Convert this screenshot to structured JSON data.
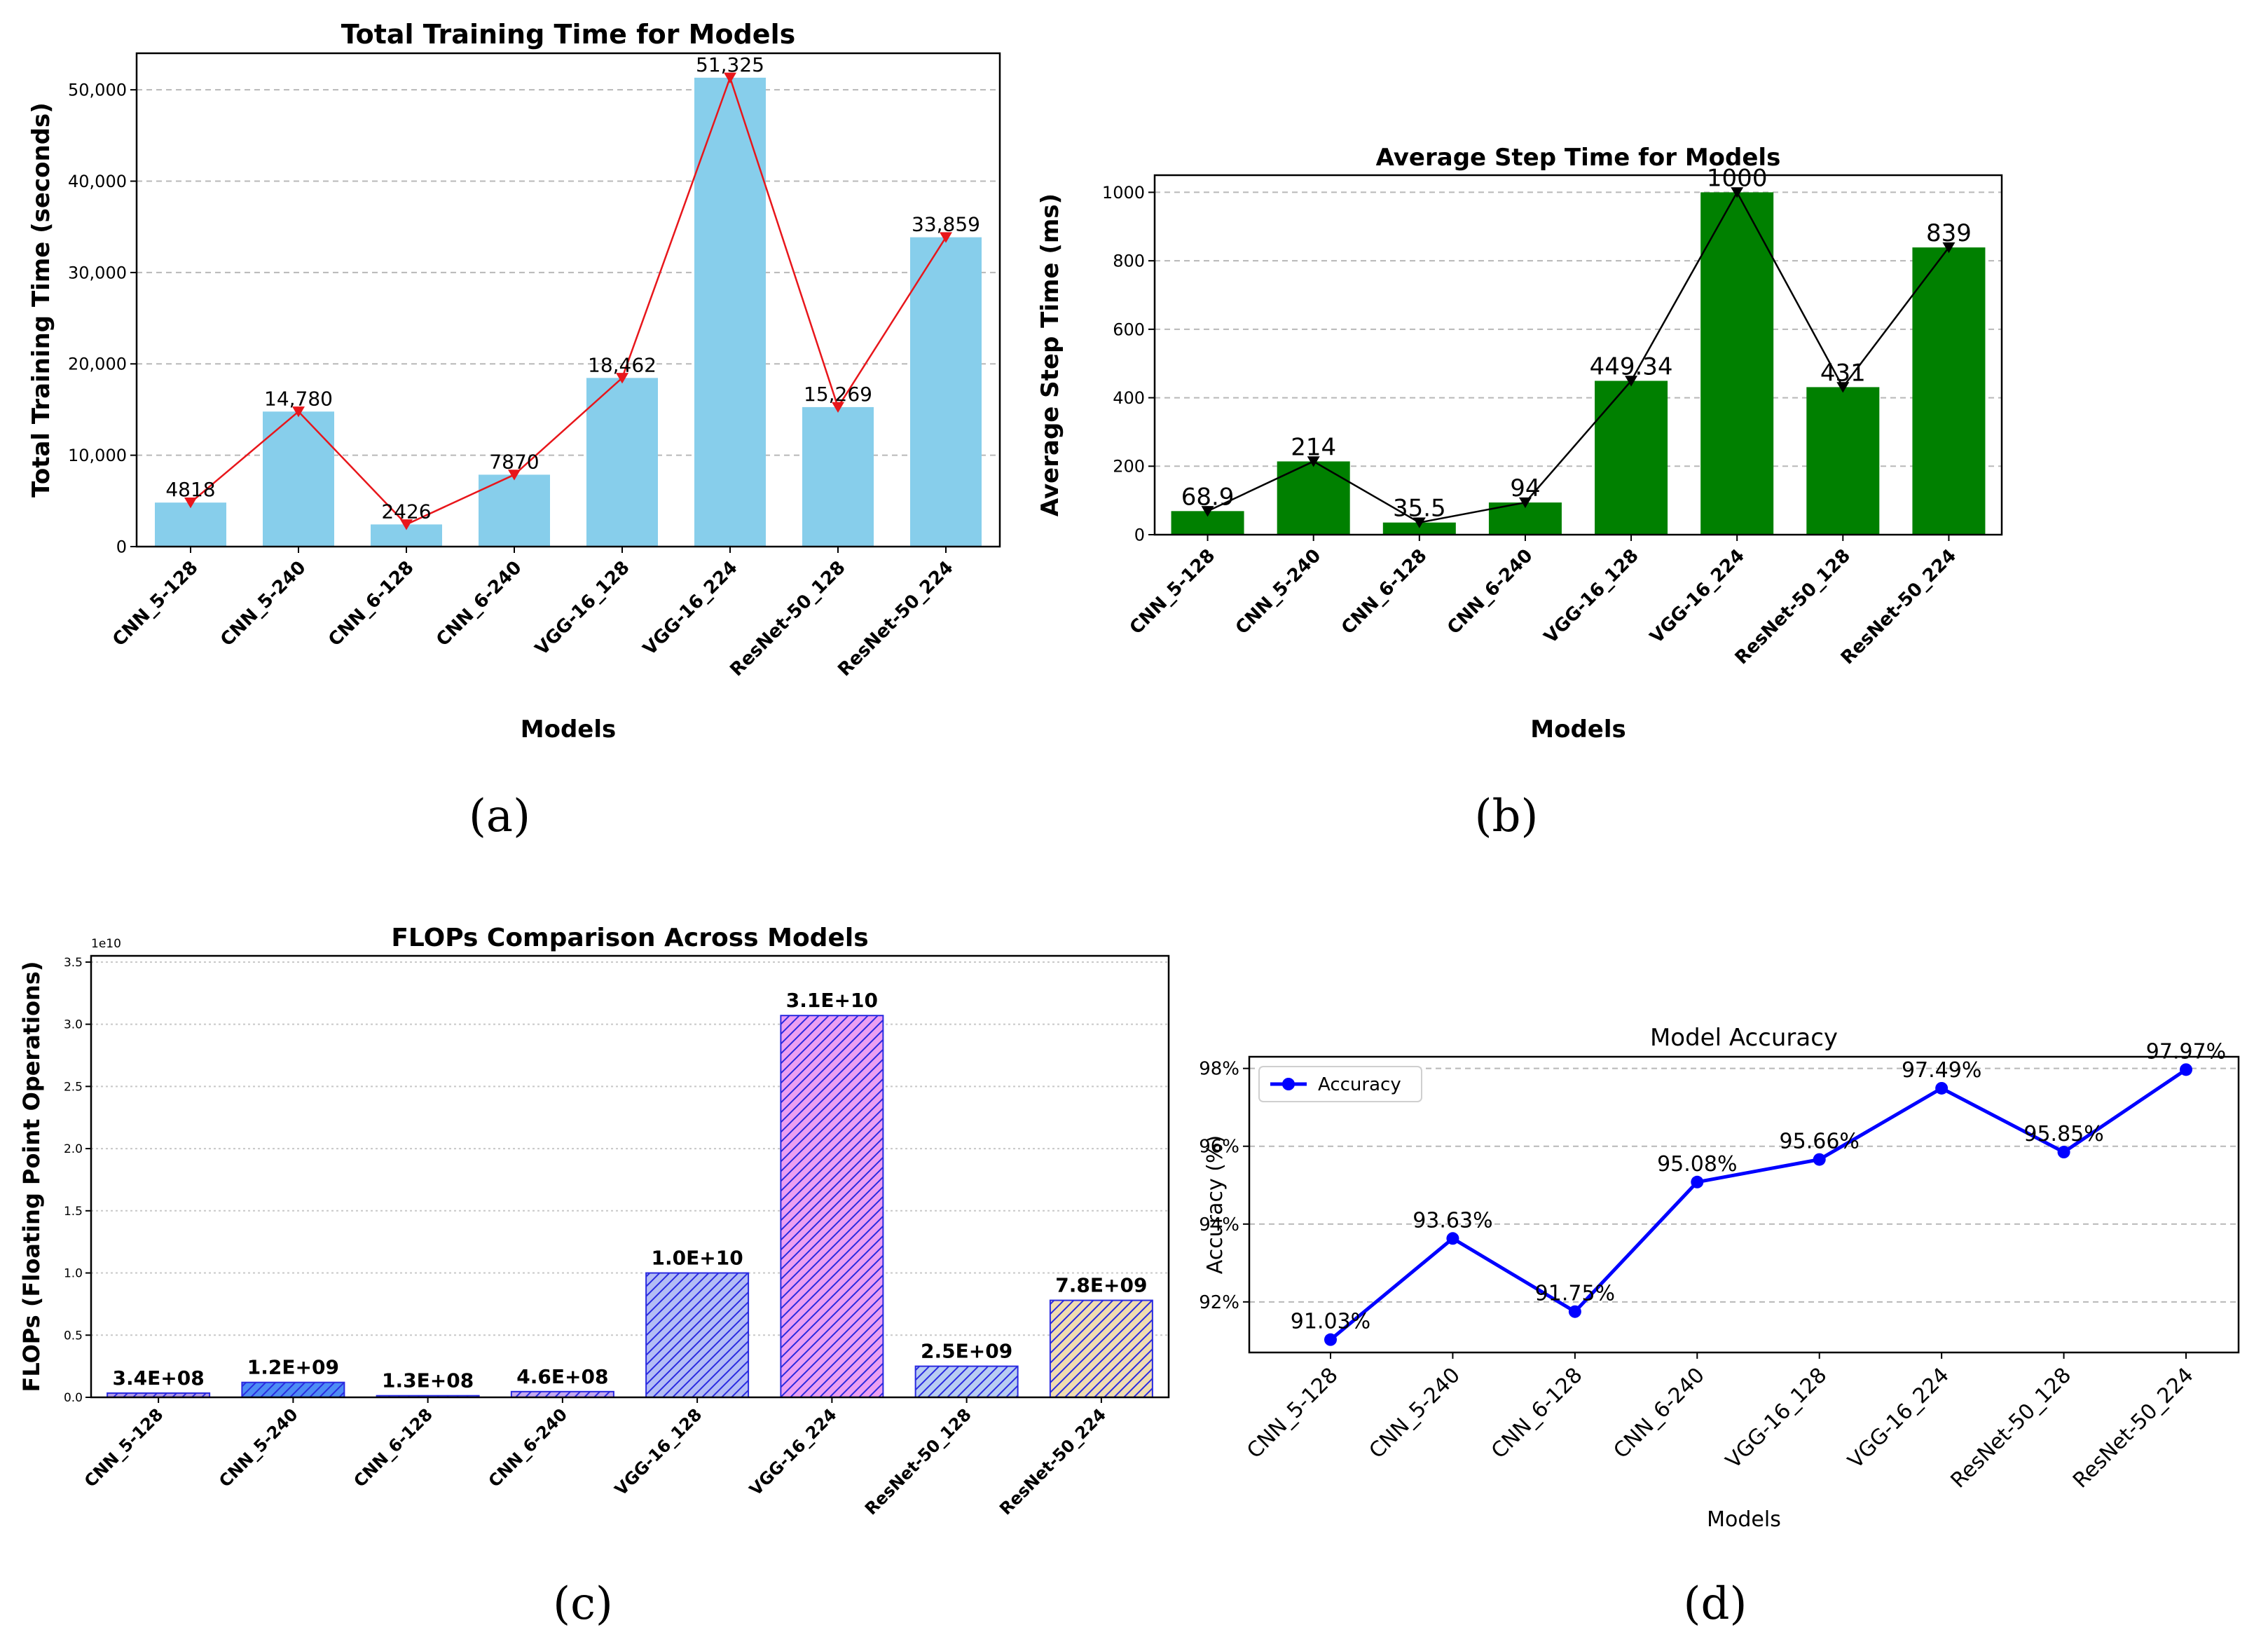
{
  "models": [
    "CNN_5-128",
    "CNN_5-240",
    "CNN_6-128",
    "CNN_6-240",
    "VGG-16_128",
    "VGG-16_224",
    "ResNet-50_128",
    "ResNet-50_224"
  ],
  "chart_data": [
    {
      "id": "a",
      "type": "bar",
      "caption": "(a)",
      "title": "Total Training Time for Models",
      "xlabel": "Models",
      "ylabel": "Total Training Time (seconds)",
      "categories": [
        "CNN_5-128",
        "CNN_5-240",
        "CNN_6-128",
        "CNN_6-240",
        "VGG-16_128",
        "VGG-16_224",
        "ResNet-50_128",
        "ResNet-50_224"
      ],
      "values": [
        4818,
        14780,
        2426,
        7870,
        18462,
        51325,
        15269,
        33859
      ],
      "value_labels": [
        "4818",
        "14,780",
        "2426",
        "7870",
        "18,462",
        "51,325",
        "15,269",
        "33,859"
      ],
      "ylim": [
        0,
        54000
      ],
      "yticks": [
        0,
        10000,
        20000,
        30000,
        40000,
        50000
      ],
      "ytick_labels": [
        "0",
        "10,000",
        "20,000",
        "30,000",
        "40,000",
        "50,000"
      ],
      "bar_color": "#87ceeb",
      "line_color": "#e8161b",
      "overlay": "line with triangle-down markers",
      "grid": "y dashed"
    },
    {
      "id": "b",
      "type": "bar",
      "caption": "(b)",
      "title": "Average Step Time for Models",
      "xlabel": "Models",
      "ylabel": "Average Step Time (ms)",
      "categories": [
        "CNN_5-128",
        "CNN_5-240",
        "CNN_6-128",
        "CNN_6-240",
        "VGG-16_128",
        "VGG-16_224",
        "ResNet-50_128",
        "ResNet-50_224"
      ],
      "values": [
        68.9,
        214,
        35.5,
        94,
        449.34,
        1000,
        431,
        839
      ],
      "value_labels": [
        "68.9",
        "214",
        "35.5",
        "94",
        "449.34",
        "1000",
        "431",
        "839"
      ],
      "ylim": [
        0,
        1050
      ],
      "yticks": [
        0,
        200,
        400,
        600,
        800,
        1000
      ],
      "ytick_labels": [
        "0",
        "200",
        "400",
        "600",
        "800",
        "1000"
      ],
      "bar_color": "#008000",
      "line_color": "#000000",
      "overlay": "line with triangle-down markers",
      "grid": "y dashed"
    },
    {
      "id": "c",
      "type": "bar",
      "caption": "(c)",
      "title": "FLOPs Comparison Across Models",
      "xlabel": "",
      "ylabel": "FLOPs (Floating Point Operations)",
      "scale_label": "1e10",
      "categories": [
        "CNN_5-128",
        "CNN_5-240",
        "CNN_6-128",
        "CNN_6-240",
        "VGG-16_128",
        "VGG-16_224",
        "ResNet-50_128",
        "ResNet-50_224"
      ],
      "values": [
        0.034,
        0.12,
        0.013,
        0.046,
        1.0,
        3.07,
        0.25,
        0.78
      ],
      "value_labels": [
        "3.4E+08",
        "1.2E+09",
        "1.3E+08",
        "4.6E+08",
        "1.0E+10",
        "3.1E+10",
        "2.5E+09",
        "7.8E+09"
      ],
      "ylim": [
        0,
        3.55
      ],
      "yticks": [
        0,
        0.5,
        1.0,
        1.5,
        2.0,
        2.5,
        3.0,
        3.5
      ],
      "ytick_labels": [
        "0.0",
        "0.5",
        "1.0",
        "1.5",
        "2.0",
        "2.5",
        "3.0",
        "3.5"
      ],
      "bar_colors": [
        "#b39ae6",
        "#4d8cf5",
        "#7ab0f0",
        "#c4a8ef",
        "#b3bcf5",
        "#ec9ff2",
        "#b8cdf2",
        "#f0dcb0"
      ],
      "edge_color": "#2a2ae0",
      "grid": "y dotted"
    },
    {
      "id": "d",
      "type": "line",
      "caption": "(d)",
      "title": "Model Accuracy",
      "xlabel": "Models",
      "ylabel": "Accuracy (%)",
      "legend": "Accuracy",
      "legend_position": "upper-left",
      "categories": [
        "CNN_5-128",
        "CNN_5-240",
        "CNN_6-128",
        "CNN_6-240",
        "VGG-16_128",
        "VGG-16_224",
        "ResNet-50_128",
        "ResNet-50_224"
      ],
      "values": [
        91.03,
        93.63,
        91.75,
        95.08,
        95.66,
        97.49,
        95.85,
        97.97
      ],
      "value_labels": [
        "91.03%",
        "93.63%",
        "91.75%",
        "95.08%",
        "95.66%",
        "97.49%",
        "95.85%",
        "97.97%"
      ],
      "ylim": [
        90.7,
        98.3
      ],
      "yticks": [
        92,
        94,
        96,
        98
      ],
      "ytick_labels": [
        "92%",
        "94%",
        "96%",
        "98%"
      ],
      "line_color": "#0000ff",
      "grid": "y dashed"
    }
  ]
}
